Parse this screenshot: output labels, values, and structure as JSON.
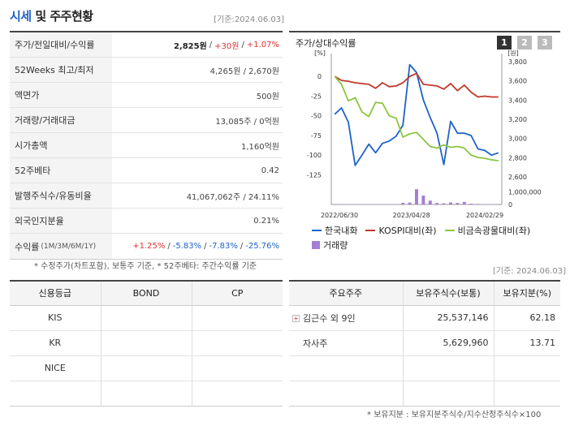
{
  "header": {
    "title_part1": "시세",
    "title_part2": "및 주주현황",
    "date": "[기준:2024.06.03]"
  },
  "summary": {
    "rows": [
      {
        "label": "주가/전일대비/수익률",
        "v1": "2,825원",
        "sep1": "/",
        "v2": "+30원",
        "sep2": "/",
        "v3": "+1.07%"
      },
      {
        "label": "52Weeks 최고/최저",
        "value": "4,265원 / 2,670원"
      },
      {
        "label": "액면가",
        "value": "500원"
      },
      {
        "label": "거래량/거래대금",
        "value": "13,085주 / 0억원"
      },
      {
        "label": "시가총액",
        "value": "1,160억원"
      },
      {
        "label": "52주베타",
        "value": "0.42"
      },
      {
        "label": "발행주식수/유동비율",
        "value": "41,067,062주 / 24.11%"
      },
      {
        "label": "외국인지분율",
        "value": "0.21%"
      },
      {
        "label": "수익률",
        "label_sub": "(1M/3M/6M/1Y)",
        "r1": "+1.25%",
        "r2": "-5.83%",
        "r3": "-7.83%",
        "r4": "-25.76%",
        "sep": "/"
      }
    ],
    "note": "* 수정주가(차트포함), 보통주 기준, * 52주베타: 주간수익률 기준"
  },
  "chart_panel": {
    "title": "주가/상대수익률",
    "period_buttons": [
      "1",
      "2",
      "3"
    ],
    "colors": {
      "stock": "#1e62c8",
      "kospi": "#c0392b",
      "sector": "#8cc63f",
      "volume": "#a57fd6",
      "active_btn": "#333333",
      "inactive_btn": "#bbbbbb"
    }
  },
  "chart_data": {
    "type": "line",
    "left_axis": {
      "unit": "[%]",
      "ticks": [
        "0",
        "-25",
        "-50",
        "-75",
        "-100",
        "-125"
      ],
      "range": [
        -140,
        25
      ]
    },
    "right_axis": {
      "unit": "[원]",
      "ticks": [
        "3,800",
        "3,600",
        "3,400",
        "3,200",
        "3,000",
        "2,800",
        "2,600"
      ],
      "range": [
        2500,
        3850
      ]
    },
    "volume_axis": {
      "ticks": [
        "1,000,000",
        "0"
      ],
      "range": [
        0,
        1400000
      ]
    },
    "x_ticks": [
      "2022/06/30",
      "2023/04/28",
      "2024/02/29"
    ],
    "series": [
      {
        "name": "한국내화",
        "values": [
          -48,
          -40,
          -58,
          -113,
          -100,
          -86,
          -97,
          -85,
          -82,
          -76,
          -62,
          15,
          5,
          -30,
          -52,
          -72,
          -112,
          -57,
          -72,
          -72,
          -75,
          -92,
          -94,
          -100,
          -97
        ]
      },
      {
        "name": "KOSPI대비(좌)",
        "values": [
          0,
          -5,
          -6,
          -8,
          -9,
          -10,
          -15,
          -8,
          -13,
          -12,
          -8,
          0,
          4,
          -10,
          -11,
          -12,
          -16,
          -9,
          -18,
          -11,
          -20,
          -26,
          -25,
          -26,
          -26
        ]
      },
      {
        "name": "비금속광물대비(좌)",
        "values": [
          0,
          -10,
          -31,
          -27,
          -45,
          -51,
          -33,
          -34,
          -50,
          -53,
          -77,
          -73,
          -71,
          -80,
          -89,
          -91,
          -87,
          -90,
          -89,
          -91,
          -100,
          -103,
          -104,
          -106,
          -107
        ]
      }
    ],
    "volume": {
      "name": "거래량",
      "values": [
        30000,
        20000,
        20000,
        15000,
        20000,
        15000,
        12000,
        15000,
        25000,
        15000,
        130000,
        150000,
        1200000,
        700000,
        300000,
        120000,
        90000,
        160000,
        120000,
        200000,
        60000,
        40000,
        20000,
        25000,
        10000
      ]
    }
  },
  "credit_table": {
    "headers": [
      "신용등급",
      "BOND",
      "CP"
    ],
    "rows": [
      [
        "KIS",
        "",
        ""
      ],
      [
        "KR",
        "",
        ""
      ],
      [
        "NICE",
        "",
        ""
      ],
      [
        "",
        "",
        ""
      ]
    ]
  },
  "holders_table": {
    "date": "[기준: 2024.06.03]",
    "headers": [
      "주요주주",
      "보유주식수(보통)",
      "보유지분(%)"
    ],
    "rows": [
      {
        "name": "김근수 외 9인",
        "shares": "25,537,146",
        "pct": "62.18"
      },
      {
        "name": "자사주",
        "shares": "5,629,960",
        "pct": "13.71"
      },
      {
        "name": "",
        "shares": "",
        "pct": ""
      },
      {
        "name": "",
        "shares": "",
        "pct": ""
      }
    ],
    "note": "* 보유지분 : 보유지분주식수/지수산정주식수×100"
  }
}
